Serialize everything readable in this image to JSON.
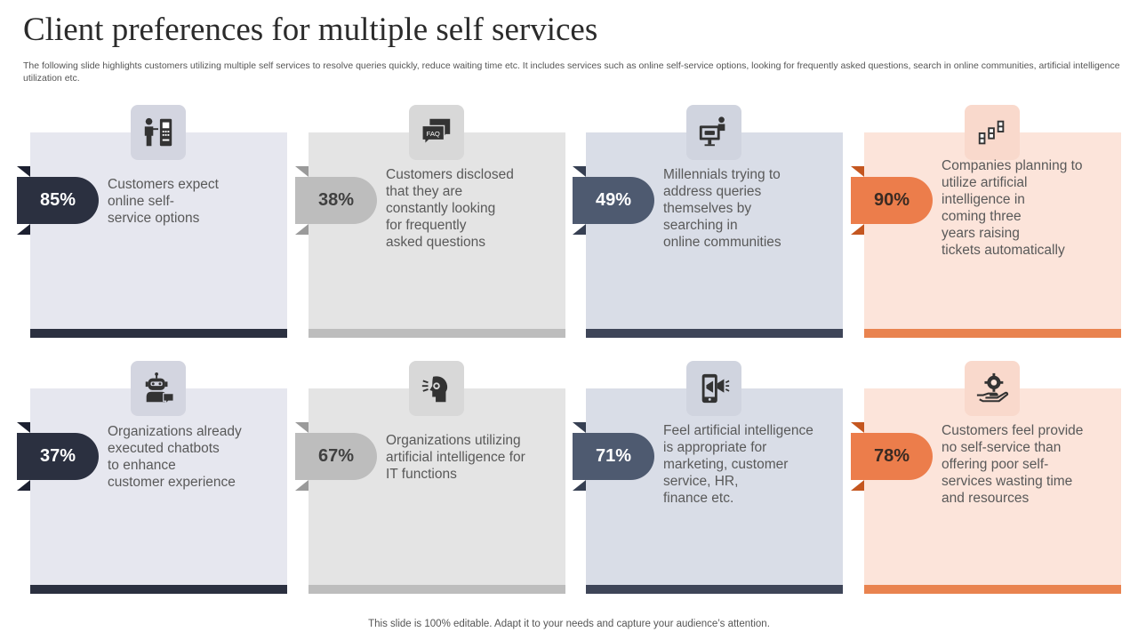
{
  "title": "Client preferences for multiple self services",
  "subtitle": "The following slide highlights customers utilizing multiple self services to resolve queries quickly, reduce waiting time etc. It includes services such as online self-service options, looking for frequently asked questions, search in online communities, artificial intelligence utilization etc.",
  "footer": "This slide is 100% editable. Adapt it to your needs and capture your audience’s attention.",
  "icons": {
    "faq_label": "FAQ"
  },
  "cards": [
    {
      "percent": "85%",
      "text": "Customers expect\nonline self-\nservice options",
      "icon": "kiosk-user-icon",
      "theme": "navy"
    },
    {
      "percent": "38%",
      "text": "Customers disclosed\nthat they are\nconstantly  looking\nfor frequently\nasked questions",
      "icon": "faq-chat-icon",
      "theme": "gray"
    },
    {
      "percent": "49%",
      "text": "Millennials trying to\naddress queries\nthemselves by\nsearching in\nonline communities",
      "icon": "online-presentation-icon",
      "theme": "slate"
    },
    {
      "percent": "90%",
      "text": "Companies planning to\nutilize artificial\nintelligence in\ncoming three\nyears raising\ntickets automatically",
      "icon": "tickets-icon",
      "theme": "orange"
    },
    {
      "percent": "37%",
      "text": "Organizations already\nexecuted chatbots\nto enhance\ncustomer experience",
      "icon": "chatbot-icon",
      "theme": "navy"
    },
    {
      "percent": "67%",
      "text": "Organizations utilizing\nartificial intelligence for\nIT functions",
      "icon": "ai-head-icon",
      "theme": "gray"
    },
    {
      "percent": "71%",
      "text": "Feel artificial intelligence\nis appropriate for\nmarketing, customer\nservice, HR,\nfinance etc.",
      "icon": "mobile-marketing-icon",
      "theme": "slate"
    },
    {
      "percent": "78%",
      "text": "Customers feel provide\nno self-service than\noffering poor self-\nservices wasting time\nand resources",
      "icon": "service-hand-icon",
      "theme": "orange"
    }
  ],
  "themes": {
    "navy": {
      "card_bg": "#e6e7ef",
      "tab_bg": "#d3d5e0",
      "pill_bg": "#2b3040",
      "pill_text": "#ffffff",
      "bar": "#2b3040",
      "fold": "#1c2030"
    },
    "gray": {
      "card_bg": "#e4e4e4",
      "tab_bg": "#d8d8d8",
      "pill_bg": "#bdbdbd",
      "pill_text": "#404040",
      "bar": "#bdbdbd",
      "fold": "#9a9a9a"
    },
    "slate": {
      "card_bg": "#d9dde7",
      "tab_bg": "#d0d4df",
      "pill_bg": "#4e5a70",
      "pill_text": "#ffffff",
      "bar": "#3e4558",
      "fold": "#363f52"
    },
    "orange": {
      "card_bg": "#fce4da",
      "tab_bg": "#f9d9cc",
      "pill_bg": "#ec7d4b",
      "pill_text": "#3a2a22",
      "bar": "#e9834f",
      "fold": "#c4561f"
    }
  }
}
